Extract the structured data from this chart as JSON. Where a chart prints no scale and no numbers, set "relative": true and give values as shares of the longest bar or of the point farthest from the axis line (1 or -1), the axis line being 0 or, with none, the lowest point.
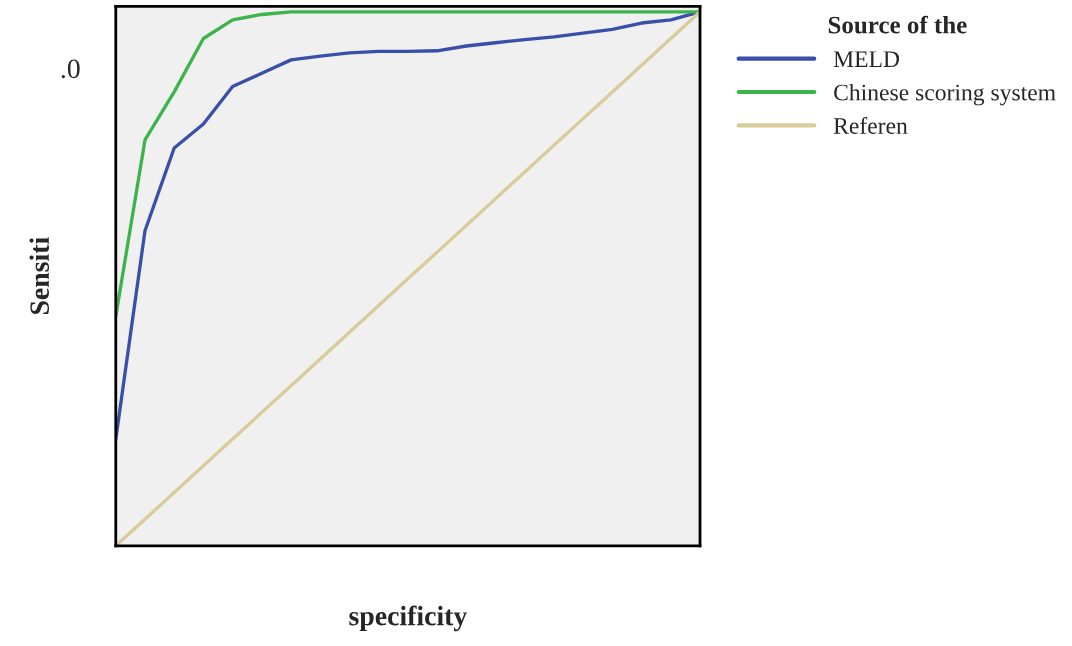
{
  "chart_data": {
    "type": "line",
    "relative": true,
    "xlabel": "specificity",
    "ylabel": "Sensiti",
    "legend_title": "Source of the",
    "legend": "top right",
    "grid": false,
    "annotations": [
      ".0"
    ],
    "categories": [
      null,
      null,
      null,
      null,
      null,
      null,
      null,
      null,
      null,
      null,
      null,
      null,
      null,
      null,
      null,
      null,
      null,
      null,
      null,
      null,
      null
    ],
    "series": [
      {
        "name": "MELD",
        "color": "#3a4fa8",
        "values": [
          0.2,
          0.59,
          0.745,
          0.79,
          0.86,
          0.885,
          0.91,
          0.917,
          0.923,
          0.926,
          0.926,
          0.927,
          0.936,
          0.942,
          0.948,
          0.953,
          0.96,
          0.967,
          0.979,
          0.985,
          1.0
        ]
      },
      {
        "name": "Chinese scoring system",
        "color": "#3cb44b",
        "values": [
          0.43,
          0.76,
          0.85,
          0.95,
          0.985,
          0.995,
          1.0,
          1.0,
          1.0,
          1.0,
          1.0,
          1.0,
          1.0,
          1.0,
          1.0,
          1.0,
          1.0,
          1.0,
          1.0,
          1.0,
          1.0
        ]
      },
      {
        "name": "Referen",
        "color": "#d8cc9a",
        "values": [
          0.0,
          0.05,
          0.1,
          0.15,
          0.2,
          0.25,
          0.3,
          0.35,
          0.4,
          0.45,
          0.5,
          0.55,
          0.6,
          0.65,
          0.7,
          0.75,
          0.8,
          0.85,
          0.9,
          0.95,
          1.0
        ]
      }
    ]
  }
}
